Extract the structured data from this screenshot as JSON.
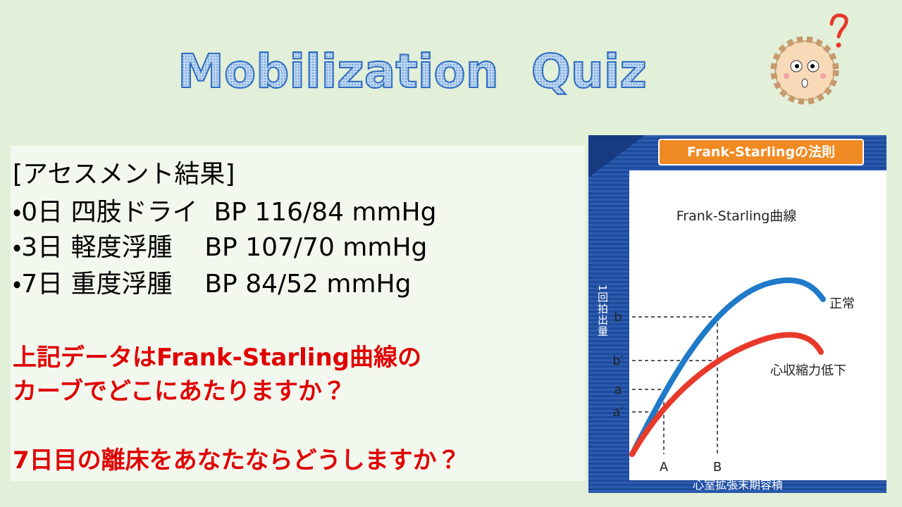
{
  "slide": {
    "title": "Mobilization  Quiz"
  },
  "assessment": {
    "heading": "[アセスメント結果]",
    "items": [
      "・0日 四肢ドライ  BP 116/84 mmHg",
      "・3日 軽度浮腫    BP 107/70 mmHg",
      "・7日 重度浮腫    BP 84/52 mmHg"
    ]
  },
  "questions": [
    "上記データはFrank-Starling曲線の",
    "カーブでどこにあたりますか？",
    "7日目の離床をあなたならどうしますか？"
  ],
  "figure": {
    "title": "Frank-Starlingの法則",
    "curve_label": "Frank-Starling曲線",
    "y_axis_label": "1回拍出量",
    "x_axis_label": "心室拡張末期容積",
    "y_ticks": [
      "b",
      "b′",
      "a",
      "a′"
    ],
    "x_ticks": [
      "A",
      "B"
    ],
    "curves": [
      "正常",
      "心収縮力低下"
    ]
  }
}
